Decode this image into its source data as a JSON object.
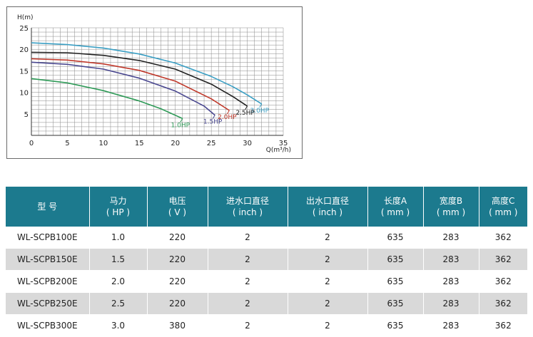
{
  "chart_data": {
    "type": "line",
    "ylabel": "H(m)",
    "xlabel": "Q(m³/h)",
    "xlim": [
      0,
      35
    ],
    "ylim": [
      0,
      25
    ],
    "x_ticks": [
      0,
      5,
      10,
      15,
      20,
      25,
      30,
      35
    ],
    "y_ticks": [
      5,
      10,
      15,
      20,
      25
    ],
    "grid": true,
    "series": [
      {
        "name": "3.0HP",
        "color": "#3a9fc4",
        "x": [
          0,
          5,
          10,
          15,
          20,
          25,
          28,
          30,
          32
        ],
        "y": [
          21.5,
          21.1,
          20.3,
          18.9,
          16.8,
          13.7,
          11.3,
          9.4,
          7.3
        ]
      },
      {
        "name": "2.5HP",
        "color": "#222222",
        "x": [
          0,
          5,
          10,
          15,
          20,
          25,
          28,
          30
        ],
        "y": [
          19.3,
          19.2,
          18.6,
          17.4,
          15.4,
          11.9,
          9.0,
          6.8
        ]
      },
      {
        "name": "2.0HP",
        "color": "#c0392b",
        "x": [
          0,
          5,
          10,
          15,
          20,
          25,
          27.5
        ],
        "y": [
          17.8,
          17.5,
          16.6,
          15.1,
          12.6,
          8.5,
          5.8
        ]
      },
      {
        "name": "1.5HP",
        "color": "#4a4890",
        "x": [
          0,
          5,
          10,
          15,
          20,
          24,
          25.5
        ],
        "y": [
          17.0,
          16.5,
          15.4,
          13.3,
          10.3,
          6.8,
          4.7
        ]
      },
      {
        "name": "1.0HP",
        "color": "#2e9a57",
        "x": [
          0,
          5,
          10,
          15,
          18,
          21
        ],
        "y": [
          13.2,
          12.2,
          10.4,
          8.0,
          6.2,
          3.9
        ]
      }
    ]
  },
  "table": {
    "headers": [
      {
        "main": "型  号",
        "sub": ""
      },
      {
        "main": "马力",
        "sub": "( HP )"
      },
      {
        "main": "电压",
        "sub": "( V )"
      },
      {
        "main": "进水口直径",
        "sub": "( inch )"
      },
      {
        "main": "出水口直径",
        "sub": "( inch )"
      },
      {
        "main": "长度A",
        "sub": "( mm )"
      },
      {
        "main": "宽度B",
        "sub": "( mm )"
      },
      {
        "main": "高度C",
        "sub": "( mm )"
      }
    ],
    "rows": [
      [
        "WL-SCPB100E",
        "1.0",
        "220",
        "2",
        "2",
        "635",
        "283",
        "362"
      ],
      [
        "WL-SCPB150E",
        "1.5",
        "220",
        "2",
        "2",
        "635",
        "283",
        "362"
      ],
      [
        "WL-SCPB200E",
        "2.0",
        "220",
        "2",
        "2",
        "635",
        "283",
        "362"
      ],
      [
        "WL-SCPB250E",
        "2.5",
        "220",
        "2",
        "2",
        "635",
        "283",
        "362"
      ],
      [
        "WL-SCPB300E",
        "3.0",
        "380",
        "2",
        "2",
        "635",
        "283",
        "362"
      ]
    ]
  }
}
